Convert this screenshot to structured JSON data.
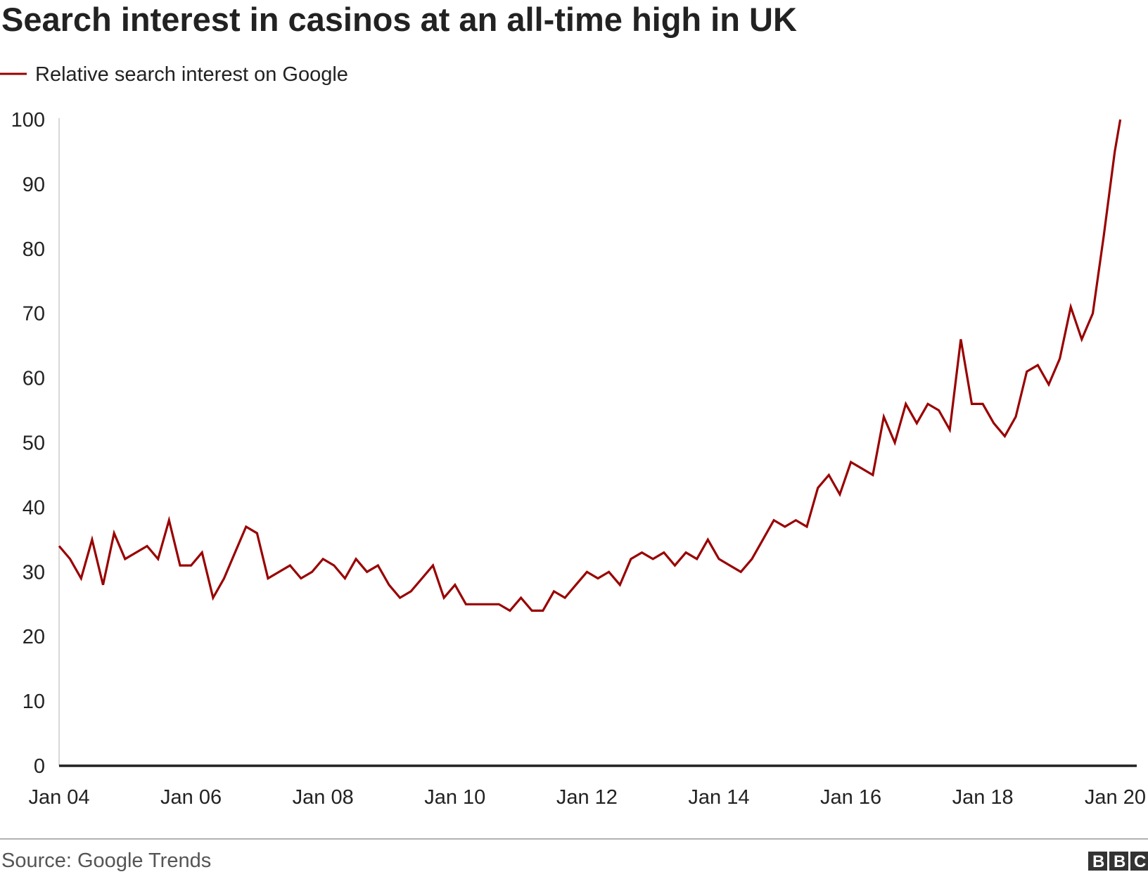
{
  "chart_data": {
    "type": "line",
    "title": "Search interest in casinos at an all-time high in UK",
    "legend_position": "top-left",
    "series": [
      {
        "name": "Relative search interest on Google",
        "color": "#990000",
        "x": [
          "2004-01",
          "2004-03",
          "2004-05",
          "2004-07",
          "2004-09",
          "2004-11",
          "2005-01",
          "2005-03",
          "2005-05",
          "2005-07",
          "2005-09",
          "2005-11",
          "2006-01",
          "2006-03",
          "2006-05",
          "2006-07",
          "2006-09",
          "2006-11",
          "2007-01",
          "2007-03",
          "2007-05",
          "2007-07",
          "2007-09",
          "2007-11",
          "2008-01",
          "2008-03",
          "2008-05",
          "2008-07",
          "2008-09",
          "2008-11",
          "2009-01",
          "2009-03",
          "2009-05",
          "2009-07",
          "2009-09",
          "2009-11",
          "2010-01",
          "2010-03",
          "2010-05",
          "2010-07",
          "2010-09",
          "2010-11",
          "2011-01",
          "2011-03",
          "2011-05",
          "2011-07",
          "2011-09",
          "2011-11",
          "2012-01",
          "2012-03",
          "2012-05",
          "2012-07",
          "2012-09",
          "2012-11",
          "2013-01",
          "2013-03",
          "2013-05",
          "2013-07",
          "2013-09",
          "2013-11",
          "2014-01",
          "2014-03",
          "2014-05",
          "2014-07",
          "2014-09",
          "2014-11",
          "2015-01",
          "2015-03",
          "2015-05",
          "2015-07",
          "2015-09",
          "2015-11",
          "2016-01",
          "2016-03",
          "2016-05",
          "2016-07",
          "2016-09",
          "2016-11",
          "2017-01",
          "2017-03",
          "2017-05",
          "2017-07",
          "2017-09",
          "2017-11",
          "2018-01",
          "2018-03",
          "2018-05",
          "2018-07",
          "2018-09",
          "2018-11",
          "2019-01",
          "2019-03",
          "2019-05",
          "2019-07",
          "2019-09",
          "2019-11",
          "2020-01",
          "2020-02"
        ],
        "values": [
          34,
          32,
          29,
          35,
          28,
          36,
          32,
          33,
          34,
          32,
          38,
          31,
          31,
          33,
          26,
          29,
          33,
          37,
          36,
          29,
          30,
          31,
          29,
          30,
          32,
          31,
          29,
          32,
          30,
          31,
          28,
          26,
          27,
          29,
          31,
          26,
          28,
          25,
          25,
          25,
          25,
          24,
          26,
          24,
          24,
          27,
          26,
          28,
          30,
          29,
          30,
          28,
          32,
          33,
          32,
          33,
          31,
          33,
          32,
          35,
          32,
          31,
          30,
          32,
          35,
          38,
          37,
          38,
          37,
          43,
          45,
          42,
          47,
          46,
          45,
          54,
          50,
          56,
          53,
          56,
          55,
          52,
          66,
          56,
          56,
          53,
          51,
          54,
          61,
          62,
          59,
          63,
          71,
          66,
          70,
          82,
          95,
          100
        ]
      }
    ],
    "xlabel": "",
    "ylabel": "",
    "x_tick_labels": [
      "Jan 04",
      "Jan 06",
      "Jan 08",
      "Jan 10",
      "Jan 12",
      "Jan 14",
      "Jan 16",
      "Jan 18",
      "Jan 20"
    ],
    "x_tick_positions": [
      "2004-01",
      "2006-01",
      "2008-01",
      "2010-01",
      "2012-01",
      "2014-01",
      "2016-01",
      "2018-01",
      "2020-01"
    ],
    "y_ticks": [
      0,
      10,
      20,
      30,
      40,
      50,
      60,
      70,
      80,
      90,
      100
    ],
    "xlim": [
      "2004-01",
      "2020-05"
    ],
    "ylim": [
      0,
      100
    ],
    "grid": false,
    "source": "Source: Google Trends",
    "logo": "BBC"
  }
}
